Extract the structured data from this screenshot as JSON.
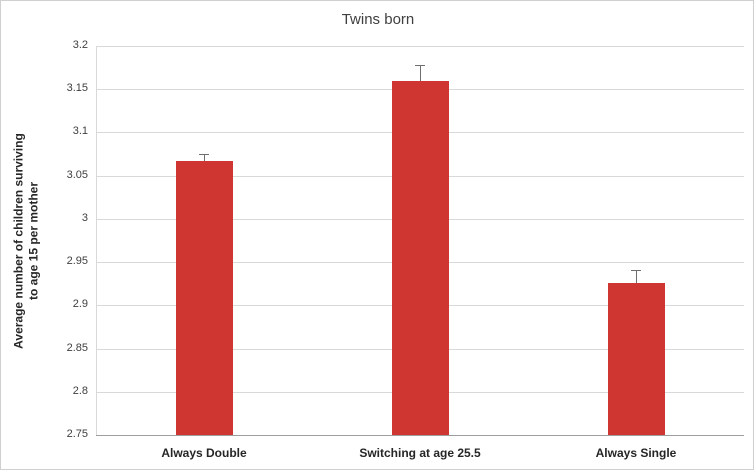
{
  "chart_data": {
    "type": "bar",
    "title": "Twins born",
    "xlabel": "",
    "ylabel": "Average number of children surviving to age 15 per mother",
    "ylabel_lines": [
      "Average number of children surviving",
      "to age 15 per mother"
    ],
    "categories": [
      "Always Double",
      "Switching at age 25.5",
      "Always Single"
    ],
    "values": [
      3.067,
      3.16,
      2.926
    ],
    "errors_plus": [
      0.008,
      0.018,
      0.015
    ],
    "ylim": [
      2.75,
      3.2
    ],
    "ytick_step": 0.05,
    "ytick_labels": [
      "2.75",
      "2.8",
      "2.85",
      "2.9",
      "2.95",
      "3",
      "3.05",
      "3.1",
      "3.15",
      "3.2"
    ],
    "grid": true,
    "legend_position": "none",
    "bar_color": "#cf3531",
    "error_bar_color": "#6e6e6e",
    "gridline_color": "#d9d9d9"
  }
}
